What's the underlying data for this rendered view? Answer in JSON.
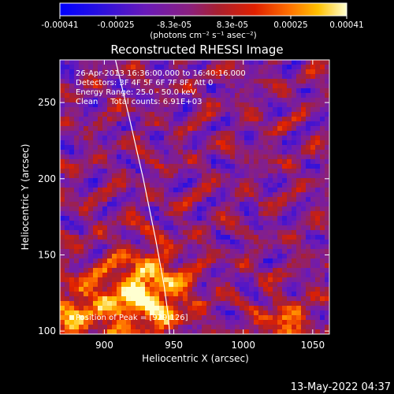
{
  "chart_data": {
    "type": "heatmap",
    "title": "Reconstructed RHESSI Image",
    "xlabel": "Heliocentric X (arcsec)",
    "ylabel": "Heliocentric Y (arcsec)",
    "xlim": [
      868,
      1062
    ],
    "ylim": [
      98,
      278
    ],
    "xticks": [
      900,
      950,
      1000,
      1050
    ],
    "yticks": [
      100,
      150,
      200,
      250
    ],
    "colorbar": {
      "ticks": [
        "-0.00041",
        "-0.00025",
        "-8.3e-05",
        "8.3e-05",
        "0.00025",
        "0.00041"
      ],
      "tick_values": [
        -0.00041,
        -0.00025,
        -8.3e-05,
        8.3e-05,
        0.00025,
        0.00041
      ],
      "range": [
        -0.00041,
        0.00041
      ],
      "units_label": "(photons cm⁻² s⁻¹ asec⁻²)"
    },
    "annotations": [
      "26-Apr-2013 16:36:00.000 to 16:40:16.000",
      "Detectors: 3F 4F 5F 6F 7F 8F, Att 0",
      "Energy Range: 25.0 - 50.0 keV",
      "Clean     Total counts: 6.91E+03"
    ],
    "peak_label": "Position of Peak = [929,126]",
    "peak_position": [
      929,
      126
    ],
    "limb_curve": {
      "x": [
        908,
        918,
        928,
        937,
        943,
        946,
        947
      ],
      "y": [
        278,
        240,
        200,
        160,
        130,
        110,
        98
      ]
    },
    "footer": "13-May-2022 04:37"
  }
}
